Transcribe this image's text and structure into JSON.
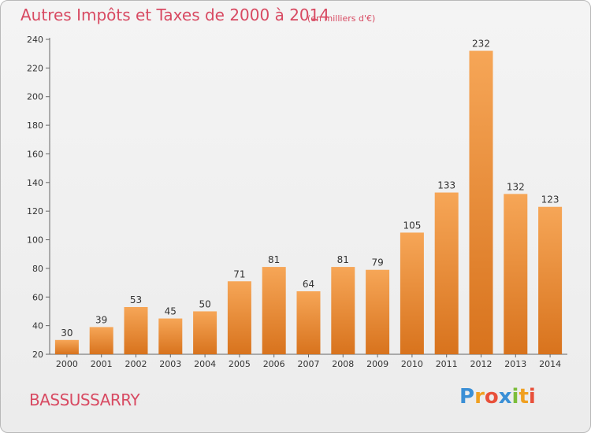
{
  "chart_data": {
    "type": "bar",
    "title": "Autres Impôts et Taxes de 2000 à 2014",
    "subtitle": "(en milliers d'€)",
    "categories": [
      "2000",
      "2001",
      "2002",
      "2003",
      "2004",
      "2005",
      "2006",
      "2007",
      "2008",
      "2009",
      "2010",
      "2011",
      "2012",
      "2013",
      "2014"
    ],
    "values": [
      30,
      39,
      53,
      45,
      50,
      71,
      81,
      64,
      81,
      79,
      105,
      133,
      232,
      132,
      123
    ],
    "ylim": [
      20,
      240
    ],
    "yticks": [
      20,
      40,
      60,
      80,
      100,
      120,
      140,
      160,
      180,
      200,
      220,
      240
    ],
    "xlabel": "",
    "ylabel": "",
    "grid": false,
    "bar_color": "#f19a45"
  },
  "footer": {
    "commune": "BASSUSSARRY",
    "logo_letters": [
      "P",
      "r",
      "o",
      "x",
      "i",
      "t",
      "i"
    ],
    "logo_colors": [
      "#3a8fd6",
      "#f0a020",
      "#e8503a",
      "#3a8fd6",
      "#7bbd3a",
      "#f0a020",
      "#e8503a"
    ]
  }
}
